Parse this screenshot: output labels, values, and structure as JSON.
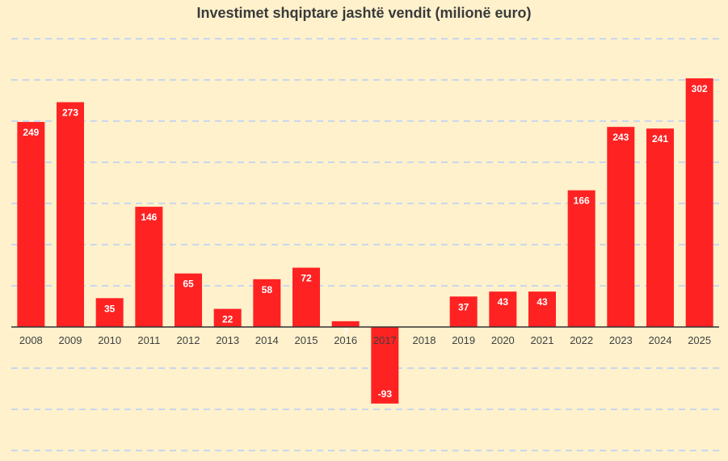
{
  "chart_data": {
    "type": "bar",
    "title": "Investimet shqiptare jashtë vendit (milionë euro)",
    "xlabel": "",
    "ylabel": "",
    "categories": [
      "2008",
      "2009",
      "2010",
      "2011",
      "2012",
      "2013",
      "2014",
      "2015",
      "2016",
      "2017",
      "2018",
      "2019",
      "2020",
      "2021",
      "2022",
      "2023",
      "2024",
      "2025"
    ],
    "values": [
      249,
      273,
      35,
      146,
      65,
      22,
      58,
      72,
      7,
      -93,
      0,
      37,
      43,
      43,
      166,
      243,
      241,
      302
    ],
    "data_labels": [
      "249",
      "273",
      "35",
      "146",
      "65",
      "22",
      "58",
      "72",
      "7",
      "-93",
      "",
      "37",
      "43",
      "43",
      "166",
      "243",
      "241",
      "302"
    ],
    "ylim": [
      -150,
      350
    ],
    "grid": true,
    "grid_step": 50,
    "bar_color": "#FF2222",
    "label_color": "#FFFFFF",
    "background": "#FEF1CC"
  }
}
